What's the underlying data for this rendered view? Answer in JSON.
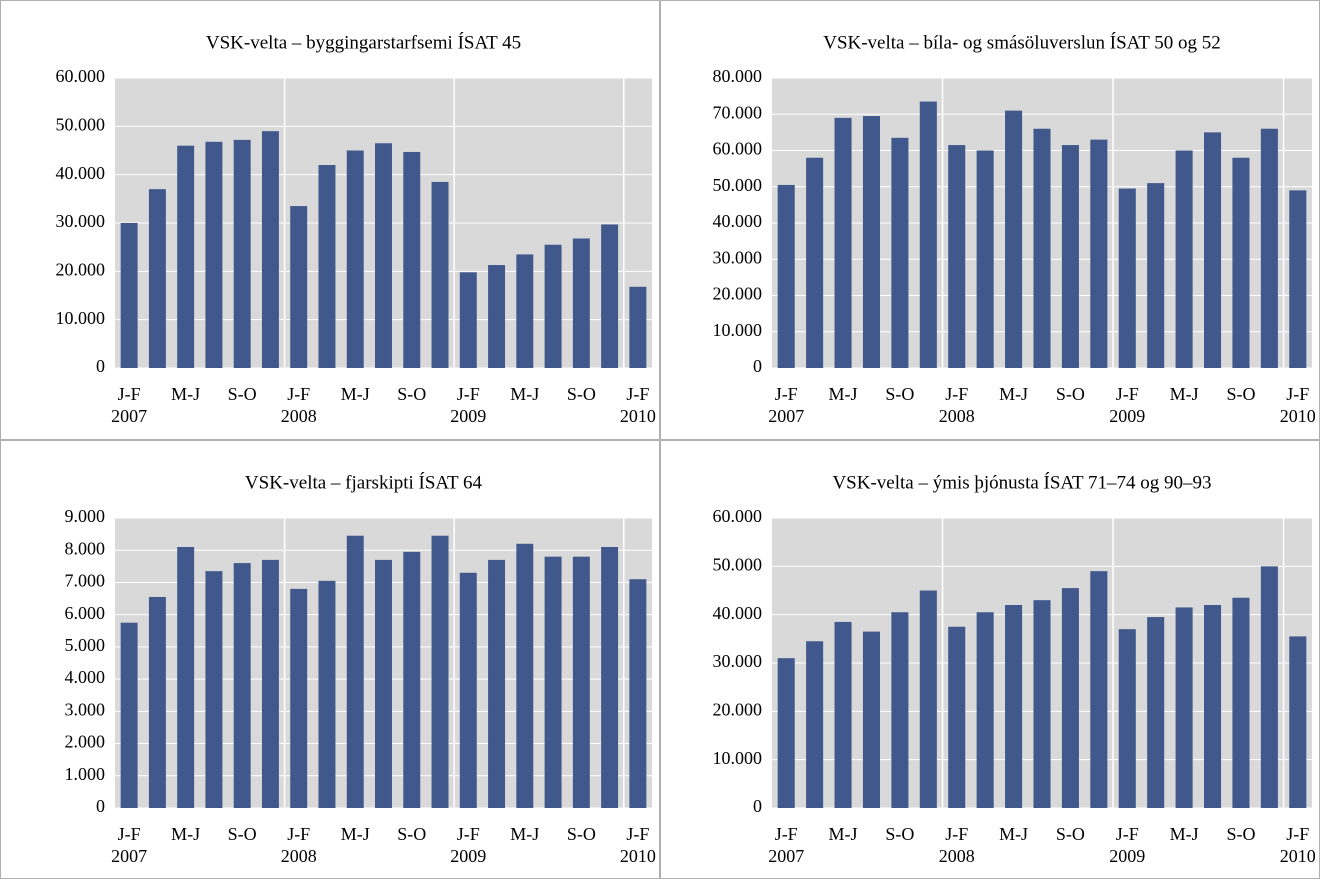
{
  "chart_data": [
    {
      "type": "bar",
      "title": "VSK-velta – byggingarstarfsemi ÍSAT 45",
      "categories": [
        "J-F",
        null,
        "M-J",
        null,
        "S-O",
        null,
        "J-F",
        null,
        "M-J",
        null,
        "S-O",
        null,
        "J-F",
        null,
        "M-J",
        null,
        "S-O",
        null,
        "J-F"
      ],
      "year_labels": [
        "2007",
        "2008",
        "2009",
        "2010"
      ],
      "values": [
        30000,
        37000,
        46000,
        46800,
        47200,
        49000,
        33500,
        42000,
        45000,
        46500,
        44700,
        38500,
        19800,
        21300,
        23500,
        25500,
        26800,
        29700,
        16800
      ],
      "color": "#41588c",
      "ylim": [
        0,
        60000
      ],
      "yticks": [
        0,
        {
          "value": 10000,
          "label": "10.000"
        },
        {
          "value": 20000,
          "label": "20.000"
        },
        {
          "value": 30000,
          "label": "30.000"
        },
        {
          "value": 40000,
          "label": "40.000"
        },
        {
          "value": 50000,
          "label": "50.000"
        },
        {
          "value": 60000,
          "label": "60.000"
        }
      ],
      "grid": true
    },
    {
      "type": "bar",
      "title": "VSK-velta – bíla- og smásöluverslun ÍSAT 50 og 52",
      "categories": [
        "J-F",
        null,
        "M-J",
        null,
        "S-O",
        null,
        "J-F",
        null,
        "M-J",
        null,
        "S-O",
        null,
        "J-F",
        null,
        "M-J",
        null,
        "S-O",
        null,
        "J-F"
      ],
      "year_labels": [
        "2007",
        "2008",
        "2009",
        "2010"
      ],
      "values": [
        50500,
        58000,
        69000,
        69500,
        63500,
        73500,
        61500,
        60000,
        71000,
        66000,
        61500,
        63000,
        49500,
        51000,
        60000,
        65000,
        58000,
        66000,
        49000
      ],
      "color": "#41588c",
      "ylim": [
        0,
        80000
      ],
      "yticks": [
        0,
        {
          "value": 10000,
          "label": "10.000"
        },
        {
          "value": 20000,
          "label": "20.000"
        },
        {
          "value": 30000,
          "label": "30.000"
        },
        {
          "value": 40000,
          "label": "40.000"
        },
        {
          "value": 50000,
          "label": "50.000"
        },
        {
          "value": 60000,
          "label": "60.000"
        },
        {
          "value": 70000,
          "label": "70.000"
        },
        {
          "value": 80000,
          "label": "80.000"
        }
      ],
      "grid": true
    },
    {
      "type": "bar",
      "title": "VSK-velta – fjarskipti ÍSAT 64",
      "categories": [
        "J-F",
        null,
        "M-J",
        null,
        "S-O",
        null,
        "J-F",
        null,
        "M-J",
        null,
        "S-O",
        null,
        "J-F",
        null,
        "M-J",
        null,
        "S-O",
        null,
        "J-F"
      ],
      "year_labels": [
        "2007",
        "2008",
        "2009",
        "2010"
      ],
      "values": [
        5750,
        6550,
        8100,
        7350,
        7600,
        7700,
        6800,
        7050,
        8450,
        7700,
        7950,
        8450,
        7300,
        7700,
        8200,
        7800,
        7800,
        8100,
        7100
      ],
      "color": "#41588c",
      "ylim": [
        0,
        9000
      ],
      "yticks": [
        0,
        {
          "value": 1000,
          "label": "1.000"
        },
        {
          "value": 2000,
          "label": "2.000"
        },
        {
          "value": 3000,
          "label": "3.000"
        },
        {
          "value": 4000,
          "label": "4.000"
        },
        {
          "value": 5000,
          "label": "5.000"
        },
        {
          "value": 6000,
          "label": "6.000"
        },
        {
          "value": 7000,
          "label": "7.000"
        },
        {
          "value": 8000,
          "label": "8.000"
        },
        {
          "value": 9000,
          "label": "9.000"
        }
      ],
      "grid": true
    },
    {
      "type": "bar",
      "title": "VSK-velta – ýmis þjónusta ÍSAT 71–74 og 90–93",
      "categories": [
        "J-F",
        null,
        "M-J",
        null,
        "S-O",
        null,
        "J-F",
        null,
        "M-J",
        null,
        "S-O",
        null,
        "J-F",
        null,
        "M-J",
        null,
        "S-O",
        null,
        "J-F"
      ],
      "year_labels": [
        "2007",
        "2008",
        "2009",
        "2010"
      ],
      "values": [
        31000,
        34500,
        38500,
        36500,
        40500,
        45000,
        37500,
        40500,
        42000,
        43000,
        45500,
        49000,
        37000,
        39500,
        41500,
        42000,
        43500,
        50000,
        35500
      ],
      "color": "#41588c",
      "ylim": [
        0,
        60000
      ],
      "yticks": [
        0,
        {
          "value": 10000,
          "label": "10.000"
        },
        {
          "value": 20000,
          "label": "20.000"
        },
        {
          "value": 30000,
          "label": "30.000"
        },
        {
          "value": 40000,
          "label": "40.000"
        },
        {
          "value": 50000,
          "label": "50.000"
        },
        {
          "value": 60000,
          "label": "60.000"
        }
      ],
      "grid": true
    }
  ]
}
